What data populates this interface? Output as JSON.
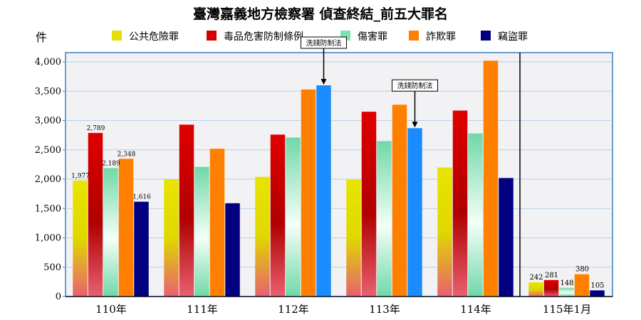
{
  "chart_data": {
    "type": "bar",
    "title": "臺灣嘉義地方檢察署 偵查終結_前五大罪名",
    "ylabel": "件",
    "xlabel": "",
    "ylim": [
      0,
      4000
    ],
    "yticks": [
      "0",
      "500",
      "1,000",
      "1,500",
      "2,000",
      "2,500",
      "3,000",
      "3,500",
      "4,000"
    ],
    "categories": [
      "110年",
      "111年",
      "112年",
      "113年",
      "114年",
      "115年1月"
    ],
    "legend_position": "top",
    "grid": true,
    "series": [
      {
        "name": "公共危險罪",
        "color": "#e6e000",
        "values": [
          1977,
          2000,
          2040,
          1990,
          2200,
          242
        ],
        "labels": [
          "1,977",
          "",
          "",
          "",
          "",
          "242"
        ]
      },
      {
        "name": "毒品危害防制條例",
        "color": "#d40000",
        "values": [
          2789,
          2930,
          2760,
          3150,
          3170,
          281
        ],
        "labels": [
          "2,789",
          "",
          "",
          "",
          "",
          "281"
        ]
      },
      {
        "name": "傷害罪",
        "color": "#7fe0b0",
        "values": [
          2189,
          2210,
          2710,
          2650,
          2780,
          148
        ],
        "labels": [
          "2,189",
          "",
          "",
          "",
          "",
          "148"
        ]
      },
      {
        "name": "詐欺罪",
        "color": "#ff8000",
        "values": [
          2348,
          2520,
          3530,
          3270,
          4020,
          380
        ],
        "labels": [
          "2,348",
          "",
          "",
          "",
          "",
          "380"
        ]
      },
      {
        "name": "竊盜罪",
        "color": "#000080",
        "values": [
          1616,
          1590,
          3600,
          2870,
          2020,
          105
        ],
        "labels": [
          "1,616",
          "",
          "",
          "",
          "",
          "105"
        ],
        "highlight_color": "#1a8cff",
        "highlight_categories": [
          2,
          3
        ]
      }
    ],
    "annotations": [
      {
        "text": "洗錢防制法",
        "category": 2,
        "series": 4
      },
      {
        "text": "洗錢防制法",
        "category": 3,
        "series": 4
      }
    ]
  }
}
